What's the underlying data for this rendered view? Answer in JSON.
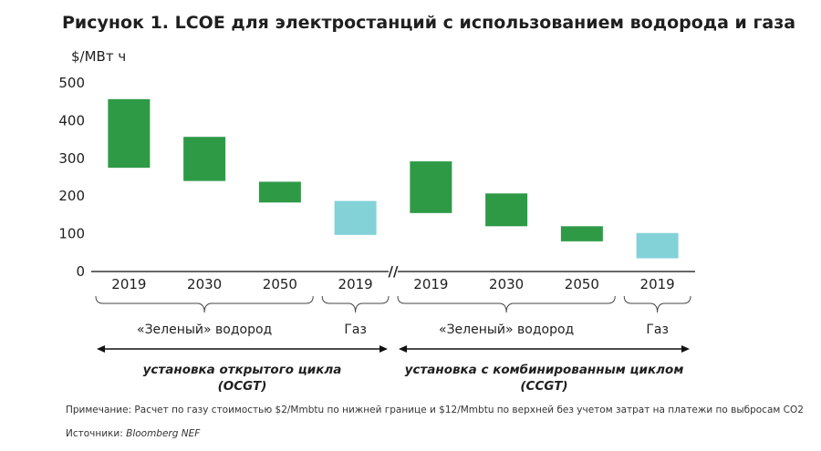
{
  "title": "Рисунок 1. LCOE для электростанций с использованием водорода и газа",
  "colors": {
    "hydrogen": "#2e9a46",
    "gas": "#82d2d8",
    "axis": "#333333"
  },
  "chart_data": {
    "type": "bar",
    "ylabel": "$/МВт ч",
    "ylim": [
      0,
      500
    ],
    "yticks": [
      0,
      100,
      200,
      300,
      400,
      500
    ],
    "categories": [
      "2019",
      "2030",
      "2050",
      "2019",
      "2019",
      "2030",
      "2050",
      "2019"
    ],
    "bars": [
      {
        "low": 275,
        "high": 457,
        "kind": "hydrogen"
      },
      {
        "low": 240,
        "high": 357,
        "kind": "hydrogen"
      },
      {
        "low": 183,
        "high": 238,
        "kind": "hydrogen"
      },
      {
        "low": 97,
        "high": 187,
        "kind": "gas"
      },
      {
        "low": 155,
        "high": 292,
        "kind": "hydrogen"
      },
      {
        "low": 120,
        "high": 207,
        "kind": "hydrogen"
      },
      {
        "low": 80,
        "high": 120,
        "kind": "hydrogen"
      },
      {
        "low": 35,
        "high": 102,
        "kind": "gas"
      }
    ],
    "groups": [
      {
        "label": "«Зеленый» водород",
        "from": 0,
        "to": 2
      },
      {
        "label": "Газ",
        "from": 3,
        "to": 3
      },
      {
        "label": "«Зеленый» водород",
        "from": 4,
        "to": 6
      },
      {
        "label": "Газ",
        "from": 7,
        "to": 7
      }
    ],
    "sections": [
      {
        "line1": "установка открытого цикла",
        "line2": "(OCGT)",
        "from": 0,
        "to": 3
      },
      {
        "line1": "установка с комбинированным циклом",
        "line2": "(CCGT)",
        "from": 4,
        "to": 7
      }
    ],
    "axis_break": "//",
    "grid": false
  },
  "note": "Примечание: Расчет по газу стоимостью $2/Mmbtu по нижней границе и $12/Mmbtu по верхней без учетом затрат на платежи по выбросам CO2",
  "source_label": "Источники:",
  "source_value": "Bloomberg NEF"
}
